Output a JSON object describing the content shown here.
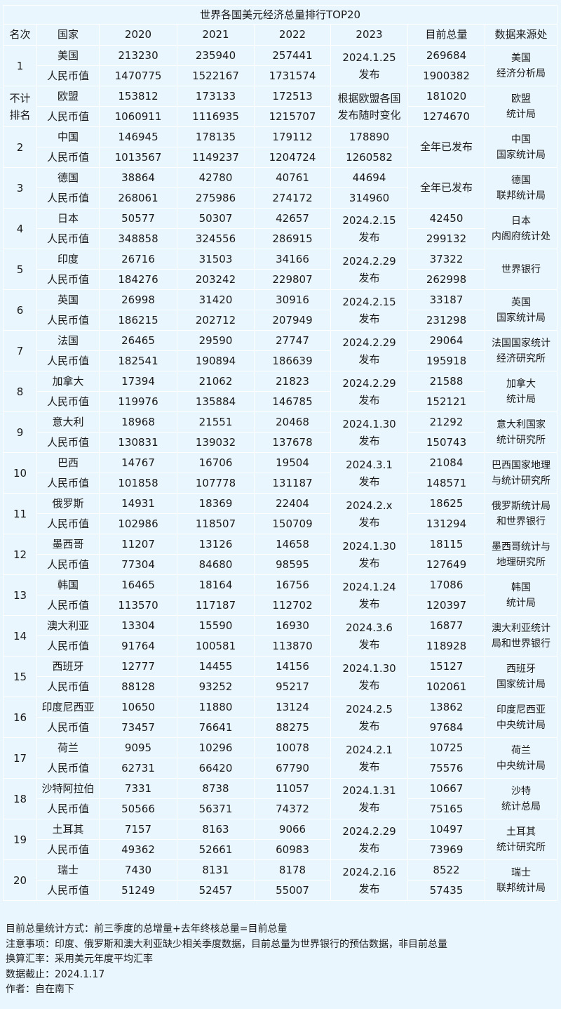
{
  "title": "世界各国美元经济总量排行TOP20",
  "headers": [
    "名次",
    "国家",
    "2020",
    "2021",
    "2022",
    "2023",
    "目前总量",
    "数据来源处"
  ],
  "rmb_label": "人民币值",
  "rows": [
    {
      "rank": "1",
      "country": "美国",
      "usd": [
        "213230",
        "235940",
        "257441"
      ],
      "rmb": [
        "1470775",
        "1522167",
        "1731574"
      ],
      "y2023": "2024.1.25\n发布",
      "cur_usd": "269684",
      "cur_rmb": "1900382",
      "source": "美国\n经济分析局"
    },
    {
      "rank": "不计\n排名",
      "country": "欧盟",
      "usd": [
        "153812",
        "173133",
        "172513"
      ],
      "rmb": [
        "1060911",
        "1116935",
        "1215707"
      ],
      "y2023": "根据欧盟各国\n发布随时变化",
      "cur_usd": "181020",
      "cur_rmb": "1274670",
      "source": "欧盟\n统计局"
    },
    {
      "rank": "2",
      "country": "中国",
      "usd": [
        "146945",
        "178135",
        "179112"
      ],
      "rmb": [
        "1013567",
        "1149237",
        "1204724"
      ],
      "y2023_usd": "178890",
      "y2023_rmb": "1260582",
      "current_note": "全年已发布",
      "source": "中国\n国家统计局"
    },
    {
      "rank": "3",
      "country": "德国",
      "usd": [
        "38864",
        "42780",
        "40761"
      ],
      "rmb": [
        "268061",
        "275986",
        "274172"
      ],
      "y2023_usd": "44694",
      "y2023_rmb": "314960",
      "current_note": "全年已发布",
      "source": "德国\n联邦统计局"
    },
    {
      "rank": "4",
      "country": "日本",
      "usd": [
        "50577",
        "50307",
        "42657"
      ],
      "rmb": [
        "348858",
        "324556",
        "286915"
      ],
      "y2023": "2024.2.15\n发布",
      "cur_usd": "42450",
      "cur_rmb": "299132",
      "source": "日本\n内阁府统计处"
    },
    {
      "rank": "5",
      "country": "印度",
      "usd": [
        "26716",
        "31503",
        "34166"
      ],
      "rmb": [
        "184276",
        "203242",
        "229807"
      ],
      "y2023": "2024.2.29\n发布",
      "cur_usd": "37322",
      "cur_rmb": "262998",
      "source": "世界银行"
    },
    {
      "rank": "6",
      "country": "英国",
      "usd": [
        "26998",
        "31420",
        "30916"
      ],
      "rmb": [
        "186215",
        "202712",
        "207949"
      ],
      "y2023": "2024.2.15\n发布",
      "cur_usd": "33187",
      "cur_rmb": "231298",
      "source": "英国\n国家统计局"
    },
    {
      "rank": "7",
      "country": "法国",
      "usd": [
        "26465",
        "29590",
        "27747"
      ],
      "rmb": [
        "182541",
        "190894",
        "186639"
      ],
      "y2023": "2024.2.29\n发布",
      "cur_usd": "29064",
      "cur_rmb": "195918",
      "source": "法国国家统计\n经济研究所"
    },
    {
      "rank": "8",
      "country": "加拿大",
      "usd": [
        "17394",
        "21062",
        "21823"
      ],
      "rmb": [
        "119976",
        "135884",
        "146785"
      ],
      "y2023": "2024.2.29\n发布",
      "cur_usd": "21588",
      "cur_rmb": "152121",
      "source": "加拿大\n统计局"
    },
    {
      "rank": "9",
      "country": "意大利",
      "usd": [
        "18968",
        "21551",
        "20468"
      ],
      "rmb": [
        "130831",
        "139032",
        "137678"
      ],
      "y2023": "2024.1.30\n发布",
      "cur_usd": "21292",
      "cur_rmb": "150743",
      "source": "意大利国家\n统计研究所"
    },
    {
      "rank": "10",
      "country": "巴西",
      "usd": [
        "14767",
        "16706",
        "19504"
      ],
      "rmb": [
        "101858",
        "107778",
        "131187"
      ],
      "y2023": "2024.3.1\n发布",
      "cur_usd": "21084",
      "cur_rmb": "148571",
      "source": "巴西国家地理\n与统计研究所"
    },
    {
      "rank": "11",
      "country": "俄罗斯",
      "usd": [
        "14931",
        "18369",
        "22404"
      ],
      "rmb": [
        "102986",
        "118507",
        "150709"
      ],
      "y2023": "2024.2.x\n发布",
      "cur_usd": "18625",
      "cur_rmb": "131294",
      "source": "俄罗斯统计局\n和世界银行"
    },
    {
      "rank": "12",
      "country": "墨西哥",
      "usd": [
        "11207",
        "13126",
        "14658"
      ],
      "rmb": [
        "77304",
        "84680",
        "98595"
      ],
      "y2023": "2024.1.30\n发布",
      "cur_usd": "18115",
      "cur_rmb": "127649",
      "source": "墨西哥统计与\n地理研究所"
    },
    {
      "rank": "13",
      "country": "韩国",
      "usd": [
        "16465",
        "18164",
        "16756"
      ],
      "rmb": [
        "113570",
        "117187",
        "112702"
      ],
      "y2023": "2024.1.24\n发布",
      "cur_usd": "17086",
      "cur_rmb": "120397",
      "source": "韩国\n统计局"
    },
    {
      "rank": "14",
      "country": "澳大利亚",
      "usd": [
        "13304",
        "15590",
        "16930"
      ],
      "rmb": [
        "91764",
        "100581",
        "113870"
      ],
      "y2023": "2024.3.6\n发布",
      "cur_usd": "16877",
      "cur_rmb": "118928",
      "source": "澳大利亚统计\n局和世界银行"
    },
    {
      "rank": "15",
      "country": "西班牙",
      "usd": [
        "12777",
        "14455",
        "14156"
      ],
      "rmb": [
        "88128",
        "93252",
        "95217"
      ],
      "y2023": "2024.1.30\n发布",
      "cur_usd": "15127",
      "cur_rmb": "102061",
      "source": "西班牙\n国家统计局"
    },
    {
      "rank": "16",
      "country": "印度尼西亚",
      "usd": [
        "10650",
        "11880",
        "13124"
      ],
      "rmb": [
        "73457",
        "76641",
        "88275"
      ],
      "y2023": "2024.2.5\n发布",
      "cur_usd": "13862",
      "cur_rmb": "97684",
      "source": "印度尼西亚\n中央统计局"
    },
    {
      "rank": "17",
      "country": "荷兰",
      "usd": [
        "9095",
        "10296",
        "10078"
      ],
      "rmb": [
        "62731",
        "66420",
        "67790"
      ],
      "y2023": "2024.2.1\n发布",
      "cur_usd": "10725",
      "cur_rmb": "75576",
      "source": "荷兰\n中央统计局"
    },
    {
      "rank": "18",
      "country": "沙特阿拉伯",
      "usd": [
        "7331",
        "8738",
        "11057"
      ],
      "rmb": [
        "50566",
        "56371",
        "74372"
      ],
      "y2023": "2024.1.31\n发布",
      "cur_usd": "10667",
      "cur_rmb": "75165",
      "source": "沙特\n统计总局"
    },
    {
      "rank": "19",
      "country": "土耳其",
      "usd": [
        "7157",
        "8163",
        "9066"
      ],
      "rmb": [
        "49362",
        "52661",
        "60983"
      ],
      "y2023": "2024.2.29\n发布",
      "cur_usd": "10497",
      "cur_rmb": "73969",
      "source": "土耳其\n统计研究所"
    },
    {
      "rank": "20",
      "country": "瑞士",
      "usd": [
        "7430",
        "8131",
        "8178"
      ],
      "rmb": [
        "51249",
        "52457",
        "55007"
      ],
      "y2023": "2024.2.16\n发布",
      "cur_usd": "8522",
      "cur_rmb": "57435",
      "source": "瑞士\n联邦统计局"
    }
  ],
  "notes": [
    "目前总量统计方式：前三季度的总增量+去年终核总量=目前总量",
    "注意事项：印度、俄罗斯和澳大利亚缺少相关季度数据，目前总量为世界银行的预估数据，非目前总量",
    "换算汇率：采用美元年度平均汇率",
    "数据截止：2024.1.17",
    "作者：自在南下"
  ]
}
